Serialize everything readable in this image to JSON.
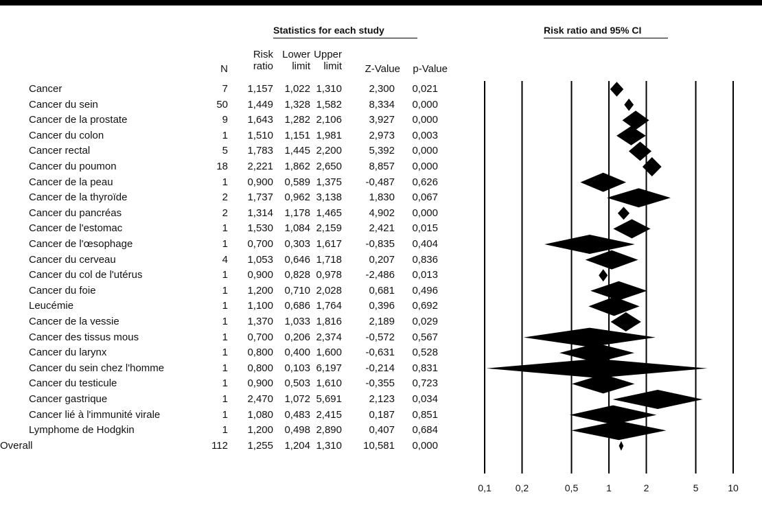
{
  "headers": {
    "stats": "Statistics for each study",
    "plot": "Risk ratio and 95% CI",
    "columns": {
      "n": "N",
      "rr": "Risk\nratio",
      "lower": "Lower\nlimit",
      "upper": "Upper\nlimit",
      "z": "Z-Value",
      "p": "p-Value"
    }
  },
  "chart_data": {
    "type": "forest",
    "x_scale": "log",
    "xlim": [
      0.1,
      10
    ],
    "x_ticks": [
      {
        "value": 0.1,
        "label": "0,1"
      },
      {
        "value": 0.2,
        "label": "0,2"
      },
      {
        "value": 0.5,
        "label": "0,5"
      },
      {
        "value": 1,
        "label": "1"
      },
      {
        "value": 2,
        "label": "2"
      },
      {
        "value": 5,
        "label": "5"
      },
      {
        "value": 10,
        "label": "10"
      }
    ],
    "marker_color": "#000000",
    "rows": [
      {
        "label": "Cancer",
        "n": "7",
        "rr_text": "1,157",
        "lower_text": "1,022",
        "upper_text": "1,310",
        "z_text": "2,300",
        "p_text": "0,021",
        "rr": 1.157,
        "lower": 1.022,
        "upper": 1.31
      },
      {
        "label": "Cancer du sein",
        "n": "50",
        "rr_text": "1,449",
        "lower_text": "1,328",
        "upper_text": "1,582",
        "z_text": "8,334",
        "p_text": "0,000",
        "rr": 1.449,
        "lower": 1.328,
        "upper": 1.582
      },
      {
        "label": "Cancer de la prostate",
        "n": "9",
        "rr_text": "1,643",
        "lower_text": "1,282",
        "upper_text": "2,106",
        "z_text": "3,927",
        "p_text": "0,000",
        "rr": 1.643,
        "lower": 1.282,
        "upper": 2.106
      },
      {
        "label": "Cancer du colon",
        "n": "1",
        "rr_text": "1,510",
        "lower_text": "1,151",
        "upper_text": "1,981",
        "z_text": "2,973",
        "p_text": "0,003",
        "rr": 1.51,
        "lower": 1.151,
        "upper": 1.981
      },
      {
        "label": "Cancer rectal",
        "n": "5",
        "rr_text": "1,783",
        "lower_text": "1,445",
        "upper_text": "2,200",
        "z_text": "5,392",
        "p_text": "0,000",
        "rr": 1.783,
        "lower": 1.445,
        "upper": 2.2
      },
      {
        "label": "Cancer du poumon",
        "n": "18",
        "rr_text": "2,221",
        "lower_text": "1,862",
        "upper_text": "2,650",
        "z_text": "8,857",
        "p_text": "0,000",
        "rr": 2.221,
        "lower": 1.862,
        "upper": 2.65
      },
      {
        "label": "Cancer de la peau",
        "n": "1",
        "rr_text": "0,900",
        "lower_text": "0,589",
        "upper_text": "1,375",
        "z_text": "-0,487",
        "p_text": "0,626",
        "rr": 0.9,
        "lower": 0.589,
        "upper": 1.375
      },
      {
        "label": "Cancer de la thyroïde",
        "n": "2",
        "rr_text": "1,737",
        "lower_text": "0,962",
        "upper_text": "3,138",
        "z_text": "1,830",
        "p_text": "0,067",
        "rr": 1.737,
        "lower": 0.962,
        "upper": 3.138
      },
      {
        "label": "Cancer du pancréas",
        "n": "2",
        "rr_text": "1,314",
        "lower_text": "1,178",
        "upper_text": "1,465",
        "z_text": "4,902",
        "p_text": "0,000",
        "rr": 1.314,
        "lower": 1.178,
        "upper": 1.465
      },
      {
        "label": "Cancer de l'estomac",
        "n": "1",
        "rr_text": "1,530",
        "lower_text": "1,084",
        "upper_text": "2,159",
        "z_text": "2,421",
        "p_text": "0,015",
        "rr": 1.53,
        "lower": 1.084,
        "upper": 2.159
      },
      {
        "label": "Cancer de l'œsophage",
        "n": "1",
        "rr_text": "0,700",
        "lower_text": "0,303",
        "upper_text": "1,617",
        "z_text": "-0,835",
        "p_text": "0,404",
        "rr": 0.7,
        "lower": 0.303,
        "upper": 1.617
      },
      {
        "label": "Cancer du cerveau",
        "n": "4",
        "rr_text": "1,053",
        "lower_text": "0,646",
        "upper_text": "1,718",
        "z_text": "0,207",
        "p_text": "0,836",
        "rr": 1.053,
        "lower": 0.646,
        "upper": 1.718
      },
      {
        "label": "Cancer du col de l'utérus",
        "n": "1",
        "rr_text": "0,900",
        "lower_text": "0,828",
        "upper_text": "0,978",
        "z_text": "-2,486",
        "p_text": "0,013",
        "rr": 0.9,
        "lower": 0.828,
        "upper": 0.978
      },
      {
        "label": "Cancer du foie",
        "n": "1",
        "rr_text": "1,200",
        "lower_text": "0,710",
        "upper_text": "2,028",
        "z_text": "0,681",
        "p_text": "0,496",
        "rr": 1.2,
        "lower": 0.71,
        "upper": 2.028
      },
      {
        "label": "Leucémie",
        "n": "1",
        "rr_text": "1,100",
        "lower_text": "0,686",
        "upper_text": "1,764",
        "z_text": "0,396",
        "p_text": "0,692",
        "rr": 1.1,
        "lower": 0.686,
        "upper": 1.764
      },
      {
        "label": "Cancer de la vessie",
        "n": "1",
        "rr_text": "1,370",
        "lower_text": "1,033",
        "upper_text": "1,816",
        "z_text": "2,189",
        "p_text": "0,029",
        "rr": 1.37,
        "lower": 1.033,
        "upper": 1.816
      },
      {
        "label": "Cancer des tissus mous",
        "n": "1",
        "rr_text": "0,700",
        "lower_text": "0,206",
        "upper_text": "2,374",
        "z_text": "-0,572",
        "p_text": "0,567",
        "rr": 0.7,
        "lower": 0.206,
        "upper": 2.374
      },
      {
        "label": "Cancer du larynx",
        "n": "1",
        "rr_text": "0,800",
        "lower_text": "0,400",
        "upper_text": "1,600",
        "z_text": "-0,631",
        "p_text": "0,528",
        "rr": 0.8,
        "lower": 0.4,
        "upper": 1.6
      },
      {
        "label": "Cancer du sein chez l'homme",
        "n": "1",
        "rr_text": "0,800",
        "lower_text": "0,103",
        "upper_text": "6,197",
        "z_text": "-0,214",
        "p_text": "0,831",
        "rr": 0.8,
        "lower": 0.103,
        "upper": 6.197
      },
      {
        "label": "Cancer du testicule",
        "n": "1",
        "rr_text": "0,900",
        "lower_text": "0,503",
        "upper_text": "1,610",
        "z_text": "-0,355",
        "p_text": "0,723",
        "rr": 0.9,
        "lower": 0.503,
        "upper": 1.61
      },
      {
        "label": "Cancer gastrique",
        "n": "1",
        "rr_text": "2,470",
        "lower_text": "1,072",
        "upper_text": "5,691",
        "z_text": "2,123",
        "p_text": "0,034",
        "rr": 2.47,
        "lower": 1.072,
        "upper": 5.691
      },
      {
        "label": "Cancer lié à l'immunité virale",
        "n": "1",
        "rr_text": "1,080",
        "lower_text": "0,483",
        "upper_text": "2,415",
        "z_text": "0,187",
        "p_text": "0,851",
        "rr": 1.08,
        "lower": 0.483,
        "upper": 2.415
      },
      {
        "label": "Lymphome de Hodgkin",
        "n": "1",
        "rr_text": "1,200",
        "lower_text": "0,498",
        "upper_text": "2,890",
        "z_text": "0,407",
        "p_text": "0,684",
        "rr": 1.2,
        "lower": 0.498,
        "upper": 2.89
      },
      {
        "label": "Overall",
        "n": "112",
        "rr_text": "1,255",
        "lower_text": "1,204",
        "upper_text": "1,310",
        "z_text": "10,581",
        "p_text": "0,000",
        "rr": 1.255,
        "lower": 1.204,
        "upper": 1.31,
        "overall": true
      }
    ]
  }
}
